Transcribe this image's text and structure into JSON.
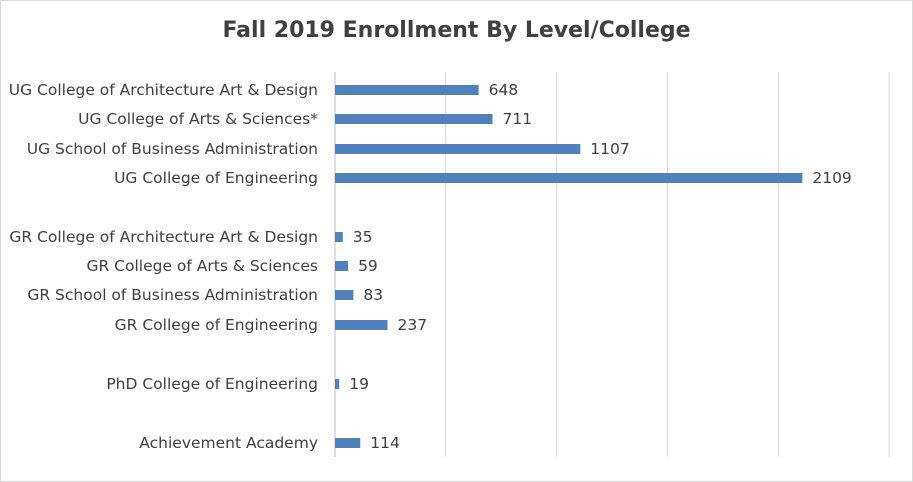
{
  "chart_data": {
    "type": "bar",
    "orientation": "horizontal",
    "title": "Fall 2019 Enrollment By Level/College",
    "xlabel": "",
    "ylabel": "",
    "xlim": [
      0,
      2500
    ],
    "grid": true,
    "legend": "none",
    "bar_color": "#4f81bd",
    "categories": [
      "UG College of Architecture Art & Design",
      "UG College of Arts & Sciences*",
      "UG School of Business Administration",
      "UG College of Engineering",
      "GR College of Architecture Art & Design",
      "GR College of Arts & Sciences",
      "GR School of Business Administration",
      "GR College of Engineering",
      "PhD College of Engineering",
      "Achievement Academy"
    ],
    "values": [
      648,
      711,
      1107,
      2109,
      35,
      59,
      83,
      237,
      19,
      114
    ]
  }
}
